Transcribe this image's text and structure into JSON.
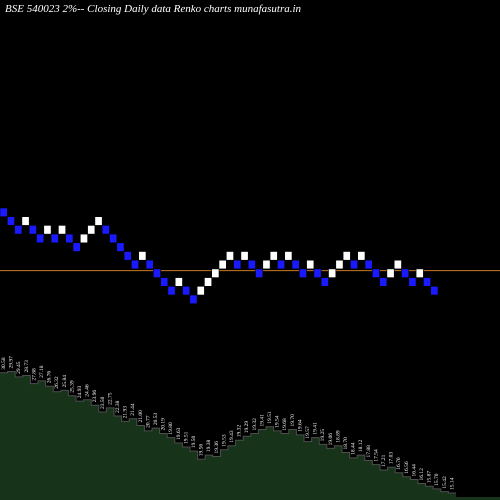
{
  "title": "BSE 540023 2%-- Closing Daily data  Renko  charts munafasutra.in",
  "colors": {
    "background": "#000000",
    "up_brick": "#ffffff",
    "down_brick": "#1a1aff",
    "brick_border": "#000000",
    "reference_line": "#c8781e",
    "volume_fill": "#17331a",
    "volume_outline": "#4e4e4e",
    "label_text": "#ffffff"
  },
  "chart_data": {
    "type": "renko",
    "brick_size_percent": 2,
    "bricks": [
      {
        "dir": "down",
        "level": 0
      },
      {
        "dir": "down",
        "level": 1
      },
      {
        "dir": "down",
        "level": 2
      },
      {
        "dir": "up",
        "level": 1
      },
      {
        "dir": "down",
        "level": 2
      },
      {
        "dir": "down",
        "level": 3
      },
      {
        "dir": "up",
        "level": 2
      },
      {
        "dir": "down",
        "level": 3
      },
      {
        "dir": "up",
        "level": 2
      },
      {
        "dir": "down",
        "level": 3
      },
      {
        "dir": "down",
        "level": 4
      },
      {
        "dir": "up",
        "level": 3
      },
      {
        "dir": "up",
        "level": 2
      },
      {
        "dir": "up",
        "level": 1
      },
      {
        "dir": "down",
        "level": 2
      },
      {
        "dir": "down",
        "level": 3
      },
      {
        "dir": "down",
        "level": 4
      },
      {
        "dir": "down",
        "level": 5
      },
      {
        "dir": "down",
        "level": 6
      },
      {
        "dir": "up",
        "level": 5
      },
      {
        "dir": "down",
        "level": 6
      },
      {
        "dir": "down",
        "level": 7
      },
      {
        "dir": "down",
        "level": 8
      },
      {
        "dir": "down",
        "level": 9
      },
      {
        "dir": "up",
        "level": 8
      },
      {
        "dir": "down",
        "level": 9
      },
      {
        "dir": "down",
        "level": 10
      },
      {
        "dir": "up",
        "level": 9
      },
      {
        "dir": "up",
        "level": 8
      },
      {
        "dir": "up",
        "level": 7
      },
      {
        "dir": "up",
        "level": 6
      },
      {
        "dir": "up",
        "level": 5
      },
      {
        "dir": "down",
        "level": 6
      },
      {
        "dir": "up",
        "level": 5
      },
      {
        "dir": "down",
        "level": 6
      },
      {
        "dir": "down",
        "level": 7
      },
      {
        "dir": "up",
        "level": 6
      },
      {
        "dir": "up",
        "level": 5
      },
      {
        "dir": "down",
        "level": 6
      },
      {
        "dir": "up",
        "level": 5
      },
      {
        "dir": "down",
        "level": 6
      },
      {
        "dir": "down",
        "level": 7
      },
      {
        "dir": "up",
        "level": 6
      },
      {
        "dir": "down",
        "level": 7
      },
      {
        "dir": "down",
        "level": 8
      },
      {
        "dir": "up",
        "level": 7
      },
      {
        "dir": "up",
        "level": 6
      },
      {
        "dir": "up",
        "level": 5
      },
      {
        "dir": "down",
        "level": 6
      },
      {
        "dir": "up",
        "level": 5
      },
      {
        "dir": "down",
        "level": 6
      },
      {
        "dir": "down",
        "level": 7
      },
      {
        "dir": "down",
        "level": 8
      },
      {
        "dir": "up",
        "level": 7
      },
      {
        "dir": "up",
        "level": 6
      },
      {
        "dir": "down",
        "level": 7
      },
      {
        "dir": "down",
        "level": 8
      },
      {
        "dir": "up",
        "level": 7
      },
      {
        "dir": "down",
        "level": 8
      },
      {
        "dir": "down",
        "level": 9
      }
    ],
    "reference_line_level": 7.2,
    "volume_labels": [
      "30.58",
      "29.97",
      "29.45",
      "28.73",
      "27.88",
      "27.18",
      "26.76",
      "26.32",
      "25.84",
      "25.39",
      "24.93",
      "24.46",
      "23.96",
      "23.50",
      "22.75",
      "22.38",
      "21.93",
      "21.44",
      "21.00",
      "20.77",
      "20.53",
      "20.19",
      "19.80",
      "19.63",
      "19.51",
      "19.50",
      "19.56",
      "19.38",
      "19.36",
      "19.53",
      "19.43",
      "19.32",
      "19.29",
      "19.32",
      "19.41",
      "19.51",
      "19.54",
      "19.68",
      "19.70",
      "19.64",
      "19.57",
      "19.41",
      "19.25",
      "19.06",
      "18.89",
      "18.70",
      "18.44",
      "18.12",
      "17.88",
      "17.54",
      "17.21",
      "17.03",
      "16.70",
      "16.56",
      "16.44",
      "16.12",
      "15.87",
      "15.70",
      "15.42",
      "15.14"
    ],
    "volume_levels": [
      92,
      93,
      89,
      90,
      84,
      86,
      82,
      78,
      79,
      75,
      71,
      72,
      68,
      63,
      66,
      60,
      56,
      58,
      53,
      49,
      51,
      47,
      44,
      40,
      37,
      34,
      28,
      31,
      30,
      35,
      38,
      42,
      45,
      47,
      50,
      52,
      49,
      47,
      50,
      46,
      41,
      44,
      39,
      36,
      38,
      33,
      29,
      31,
      27,
      24,
      20,
      22,
      18,
      15,
      13,
      10,
      8,
      6,
      4,
      3
    ]
  }
}
